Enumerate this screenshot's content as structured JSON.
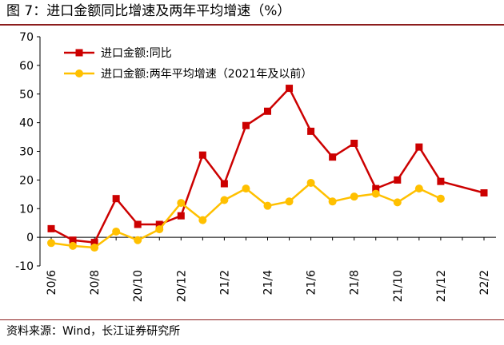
{
  "page": {
    "title": "图 7：进口金额同比增速及两年平均增速（%）",
    "source": "资料来源：Wind，长江证券研究所"
  },
  "chart_data": {
    "type": "line",
    "title": "图 7：进口金额同比增速及两年平均增速（%）",
    "xlabel": "",
    "ylabel": "",
    "ylim": [
      -10,
      70
    ],
    "yticks": [
      -10,
      0,
      10,
      20,
      30,
      40,
      50,
      60,
      70
    ],
    "grid": false,
    "legend_position": "top-left",
    "categories": [
      "20/6",
      "20/7",
      "20/8",
      "20/9",
      "20/10",
      "20/11",
      "20/12",
      "21/1",
      "21/2",
      "21/3",
      "21/4",
      "21/5",
      "21/6",
      "21/7",
      "21/8",
      "21/9",
      "21/10",
      "21/11",
      "21/12",
      "22/1",
      "22/2"
    ],
    "tick_labels": [
      "20/6",
      "20/8",
      "20/10",
      "20/12",
      "21/2",
      "21/4",
      "21/6",
      "21/8",
      "21/10",
      "21/12",
      "22/2"
    ],
    "series": [
      {
        "name": "进口金额:同比",
        "color": "#cc0000",
        "marker": "square",
        "values": [
          3.0,
          -1.0,
          -1.8,
          13.5,
          4.5,
          4.5,
          7.5,
          28.7,
          18.7,
          39.0,
          44.0,
          52.0,
          37.0,
          28.0,
          32.8,
          17.0,
          20.0,
          31.5,
          19.5,
          null,
          15.5
        ]
      },
      {
        "name": "进口金额:两年平均增速（2021年及以前）",
        "color": "#ffc000",
        "marker": "circle",
        "values": [
          -2.0,
          -3.0,
          -3.6,
          2.0,
          -1.0,
          2.8,
          12.0,
          6.0,
          13.0,
          17.0,
          11.0,
          12.5,
          19.0,
          12.5,
          14.2,
          15.2,
          12.2,
          17.0,
          13.5,
          null,
          null
        ]
      }
    ]
  }
}
